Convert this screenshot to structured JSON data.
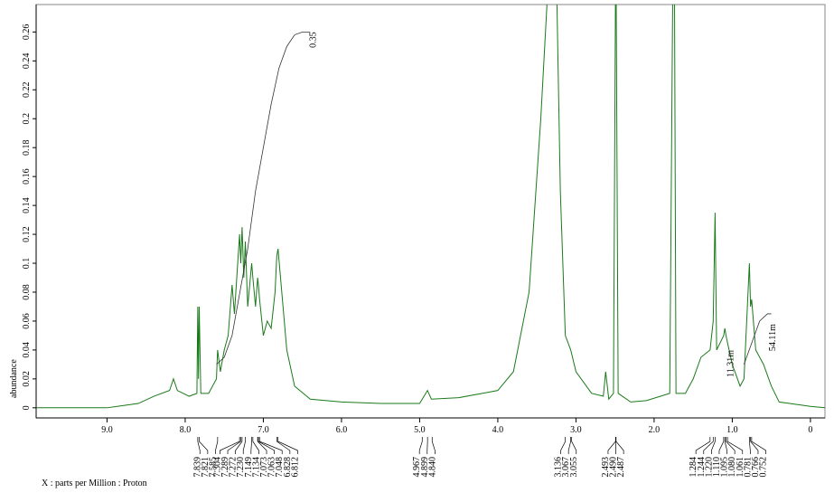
{
  "chart_data": {
    "type": "line",
    "xlabel": "X : parts per Million : Proton",
    "ylabel": "abundance",
    "xlim": [
      9.907,
      -0.186
    ],
    "ylim": [
      -0.007,
      0.279
    ],
    "xticks": [
      {
        "value": 9,
        "label": "9.0"
      },
      {
        "value": 8,
        "label": "8.0"
      },
      {
        "value": 7,
        "label": "7.0"
      },
      {
        "value": 6,
        "label": "6.0"
      },
      {
        "value": 5,
        "label": "5.0"
      },
      {
        "value": 4,
        "label": "4.0"
      },
      {
        "value": 3,
        "label": "3.0"
      },
      {
        "value": 2,
        "label": "2.0"
      },
      {
        "value": 1,
        "label": "1.0"
      },
      0
    ],
    "yticks": [
      0,
      0.02,
      0.04,
      0.06,
      0.08,
      0.1,
      0.12,
      0.14,
      0.16,
      0.18,
      0.2,
      0.22,
      0.24,
      0.26
    ],
    "series": [
      {
        "color": "#1a7a1a",
        "x": [
          9.9,
          9.0,
          8.6,
          8.4,
          8.2,
          8.15,
          8.1,
          7.95,
          7.85,
          7.839,
          7.83,
          7.821,
          7.8,
          7.7,
          7.6,
          7.585,
          7.55,
          7.5,
          7.45,
          7.4,
          7.37,
          7.304,
          7.289,
          7.272,
          7.25,
          7.23,
          7.2,
          7.149,
          7.134,
          7.1,
          7.073,
          7.063,
          7.048,
          7.0,
          6.95,
          6.9,
          6.85,
          6.828,
          6.812,
          6.78,
          6.7,
          6.6,
          6.4,
          6.0,
          5.5,
          5.0,
          4.967,
          4.9,
          4.85,
          4.5,
          4.2,
          4.0,
          3.8,
          3.6,
          3.45,
          3.35,
          3.25,
          3.2,
          3.136,
          3.067,
          3.0,
          2.8,
          2.65,
          2.62,
          2.58,
          2.52,
          2.493,
          2.487,
          2.46,
          2.3,
          2.1,
          1.8,
          1.76,
          1.74,
          1.72,
          1.6,
          1.5,
          1.4,
          1.284,
          1.244,
          1.22,
          1.2,
          1.11,
          1.095,
          1.08,
          1.061,
          1.0,
          0.9,
          0.85,
          0.781,
          0.766,
          0.752,
          0.7,
          0.6,
          0.5,
          0.4,
          0.0,
          -0.19
        ],
        "values": [
          0.0,
          0.0,
          0.003,
          0.008,
          0.012,
          0.02,
          0.012,
          0.008,
          0.01,
          0.07,
          0.02,
          0.07,
          0.01,
          0.01,
          0.02,
          0.04,
          0.025,
          0.04,
          0.05,
          0.085,
          0.065,
          0.12,
          0.1,
          0.125,
          0.09,
          0.115,
          0.07,
          0.1,
          0.09,
          0.07,
          0.09,
          0.085,
          0.075,
          0.05,
          0.06,
          0.055,
          0.08,
          0.105,
          0.11,
          0.09,
          0.04,
          0.015,
          0.006,
          0.004,
          0.003,
          0.003,
          0.006,
          0.012,
          0.006,
          0.007,
          0.01,
          0.012,
          0.025,
          0.08,
          0.2,
          0.3,
          0.3,
          0.15,
          0.05,
          0.04,
          0.025,
          0.01,
          0.008,
          0.025,
          0.006,
          0.01,
          0.3,
          0.3,
          0.01,
          0.004,
          0.005,
          0.01,
          0.3,
          0.3,
          0.01,
          0.01,
          0.02,
          0.035,
          0.04,
          0.06,
          0.135,
          0.04,
          0.05,
          0.055,
          0.05,
          0.045,
          0.03,
          0.015,
          0.02,
          0.1,
          0.07,
          0.075,
          0.04,
          0.03,
          0.015,
          0.004,
          0.001,
          0.0
        ]
      },
      {
        "color": "#333333",
        "x": [
          7.6,
          7.5,
          7.4,
          7.3,
          7.2,
          7.1,
          7.0,
          6.9,
          6.8,
          6.7,
          6.6,
          6.5,
          6.4
        ],
        "values": [
          0.03,
          0.035,
          0.05,
          0.08,
          0.11,
          0.15,
          0.18,
          0.21,
          0.235,
          0.25,
          0.258,
          0.26,
          0.26
        ]
      },
      {
        "color": "#333333",
        "x": [
          0.85,
          0.75,
          0.65,
          0.55,
          0.5
        ],
        "values": [
          0.03,
          0.045,
          0.06,
          0.065,
          0.065
        ]
      }
    ],
    "annotations": [
      {
        "text": "0.35",
        "x": 6.33,
        "y": 0.26
      },
      {
        "text": "54.11m",
        "x": 0.45,
        "y": 0.058
      },
      {
        "text": "11.31m",
        "x": 0.99,
        "y": 0.04
      }
    ],
    "peak_groups": [
      [
        {
          "value": 7.839,
          "label": "7.839"
        },
        {
          "value": 7.821,
          "label": "7.821"
        },
        {
          "value": 7.585,
          "label": "7.585"
        }
      ],
      [
        {
          "value": 7.304,
          "label": "7.304"
        },
        {
          "value": 7.289,
          "label": "7.289"
        },
        {
          "value": 7.272,
          "label": "7.272"
        },
        {
          "value": 7.23,
          "label": "7.230"
        },
        {
          "value": 7.149,
          "label": "7.149"
        },
        {
          "value": 7.134,
          "label": "7.134"
        },
        {
          "value": 7.073,
          "label": "7.073"
        },
        {
          "value": 7.063,
          "label": "7.063"
        },
        {
          "value": 7.048,
          "label": "7.048"
        },
        {
          "value": 6.828,
          "label": "6.828"
        },
        {
          "value": 6.812,
          "label": "6.812"
        }
      ],
      [
        {
          "value": 4.967,
          "label": "4.967"
        },
        {
          "value": 4.899,
          "label": "4.899"
        },
        {
          "value": 4.84,
          "label": "4.840"
        }
      ],
      [
        {
          "value": 3.136,
          "label": "3.136"
        },
        {
          "value": 3.067,
          "label": "3.067"
        },
        {
          "value": 3.055,
          "label": "3.055"
        }
      ],
      [
        {
          "value": 2.493,
          "label": "2.493"
        },
        {
          "value": 2.49,
          "label": "2.490"
        },
        {
          "value": 2.487,
          "label": "2.487"
        }
      ],
      [
        {
          "value": 1.284,
          "label": "1.284"
        },
        {
          "value": 1.244,
          "label": "1.244"
        },
        {
          "value": 1.22,
          "label": "1.220"
        },
        {
          "value": 1.11,
          "label": "1.110"
        },
        {
          "value": 1.095,
          "label": "1.095"
        },
        {
          "value": 1.08,
          "label": "1.080"
        },
        {
          "value": 1.061,
          "label": "1.061"
        },
        {
          "value": 0.781,
          "label": "0.781"
        },
        {
          "value": 0.766,
          "label": "0.766"
        },
        {
          "value": 0.752,
          "label": "0.752"
        }
      ]
    ]
  }
}
